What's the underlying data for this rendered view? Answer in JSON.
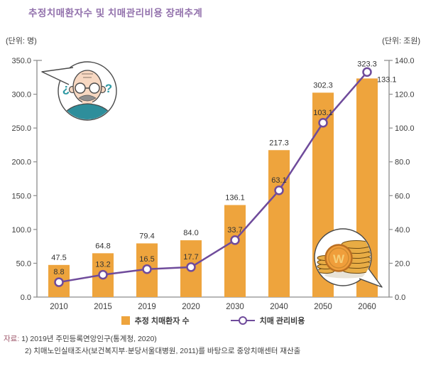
{
  "title": "추정치매환자수 및 치매관리비용 장래추계",
  "left_unit": "(단위: 명)",
  "right_unit": "(단위: 조원)",
  "legend": {
    "items": [
      {
        "label": "추정 치매환자 수",
        "type": "bar"
      },
      {
        "label": "치매 관리비용",
        "type": "line"
      }
    ]
  },
  "source": {
    "prefix": "자료:",
    "lines": [
      "1) 2019년 주민등록연앙인구(통계청, 2020)",
      "2) 치매노인실태조사(보건복지부·분당서울대병원, 2011)를 바탕으로 중앙치매센터 재산출"
    ]
  },
  "chart_data": {
    "type": "bar+line combo",
    "categories": [
      "2010",
      "2015",
      "2019",
      "2020",
      "2030",
      "2040",
      "2050",
      "2060"
    ],
    "series": [
      {
        "name": "추정 치매환자 수",
        "type": "bar",
        "axis": "left",
        "color": "#EEA43D",
        "values": [
          47.5,
          64.8,
          79.4,
          84.0,
          136.1,
          217.3,
          302.3,
          323.3
        ]
      },
      {
        "name": "치매 관리비용",
        "type": "line",
        "axis": "right",
        "color": "#6F4B9B",
        "marker": "open-circle",
        "values": [
          8.8,
          13.2,
          16.5,
          17.7,
          33.7,
          63.1,
          103.1,
          133.1
        ]
      }
    ],
    "left_axis": {
      "label": "(단위: 명)",
      "min": 0,
      "max": 350,
      "step": 50,
      "tick_labels": [
        "0.0",
        "50.0",
        "100.0",
        "150.0",
        "200.0",
        "250.0",
        "300.0",
        "350.0"
      ]
    },
    "right_axis": {
      "label": "(단위: 조원)",
      "min": 0,
      "max": 140,
      "step": 20,
      "tick_labels": [
        "0.0",
        "20.0",
        "40.0",
        "60.0",
        "80.0",
        "100.0",
        "120.0",
        "140.0"
      ]
    },
    "grid": false,
    "data_labels": true,
    "legend_position": "bottom"
  },
  "illustrations": {
    "question_left": "¿",
    "question_right": "?",
    "coin_letter": "W"
  },
  "colors": {
    "title": "#9271AC",
    "bar": "#EEA43D",
    "line": "#6F4B9B",
    "axis": "#8C8C8C",
    "text": "#3D3D3D",
    "source_label": "#A05A6E",
    "teal": "#2E99A3"
  }
}
